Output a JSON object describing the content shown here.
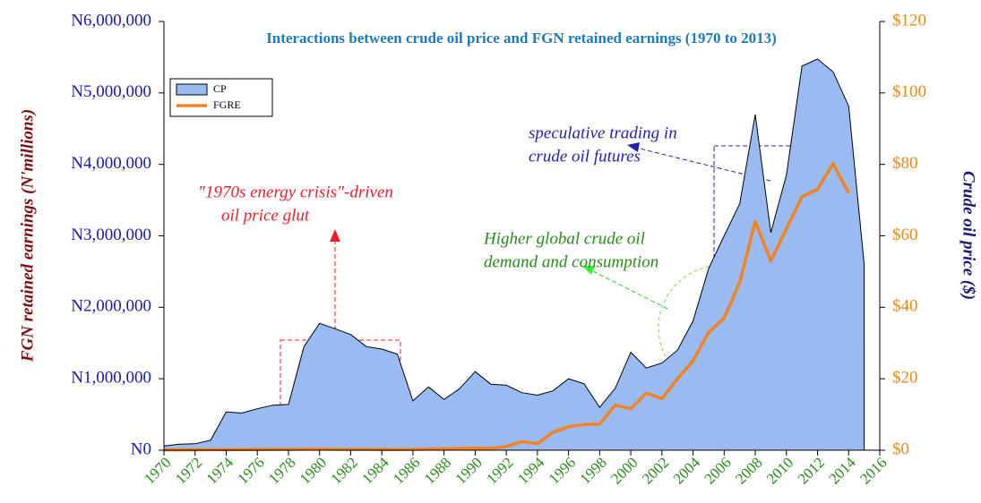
{
  "chart_data": {
    "type": "area",
    "title": "Interactions between crude oil price and FGN retained earnings (1970 to 2013)",
    "ylabel": "FGN retained earnings (N'millions)",
    "y2label": "Crude oil price ($)",
    "x": [
      1970,
      1971,
      1972,
      1973,
      1974,
      1975,
      1976,
      1977,
      1978,
      1979,
      1980,
      1981,
      1982,
      1983,
      1984,
      1985,
      1986,
      1987,
      1988,
      1989,
      1990,
      1991,
      1992,
      1993,
      1994,
      1995,
      1996,
      1997,
      1998,
      1999,
      2000,
      2001,
      2002,
      2003,
      2004,
      2005,
      2006,
      2007,
      2008,
      2009,
      2010,
      2011,
      2012,
      2013,
      2014,
      2015
    ],
    "series": [
      {
        "name": "CP",
        "type": "area",
        "axis": "y2",
        "color": "#99bbf2",
        "values": [
          1.2,
          1.7,
          1.8,
          2.8,
          10.7,
          10.4,
          11.6,
          12.6,
          12.8,
          29,
          35.5,
          34,
          32.4,
          29,
          28.3,
          26.9,
          13.8,
          17.7,
          14.2,
          17.2,
          22,
          18.5,
          18.2,
          16.1,
          15.4,
          16.6,
          20,
          18.6,
          12,
          17.3,
          27.4,
          23,
          24.4,
          28,
          36.2,
          50.8,
          60,
          69,
          94,
          60.9,
          77,
          107.5,
          109.5,
          105.9,
          96.3,
          52
        ]
      },
      {
        "name": "FGRE",
        "type": "line",
        "axis": "y",
        "color": "#f58220",
        "values": [
          5000,
          5000,
          6000,
          7000,
          8000,
          10000,
          11000,
          12000,
          13000,
          14000,
          15000,
          14000,
          13000,
          12000,
          11000,
          10000,
          12000,
          16000,
          20000,
          25000,
          30000,
          25000,
          50000,
          120000,
          90000,
          250000,
          330000,
          360000,
          365000,
          630000,
          580000,
          800000,
          720000,
          1000000,
          1250000,
          1650000,
          1850000,
          2350000,
          3200000,
          2650000,
          3100000,
          3550000,
          3650000,
          4010000,
          3600000,
          null
        ]
      }
    ],
    "xlim": [
      1970,
      2016
    ],
    "xticks": [
      1970,
      1972,
      1974,
      1976,
      1978,
      1980,
      1982,
      1984,
      1986,
      1988,
      1990,
      1992,
      1994,
      1996,
      1998,
      2000,
      2002,
      2004,
      2006,
      2008,
      2010,
      2012,
      2014,
      2016
    ],
    "ylim": [
      0,
      6000000
    ],
    "yticks": [
      {
        "value": 0,
        "label": "N0"
      },
      {
        "value": 1000000,
        "label": "N1,000,000"
      },
      {
        "value": 2000000,
        "label": "N2,000,000"
      },
      {
        "value": 3000000,
        "label": "N3,000,000"
      },
      {
        "value": 4000000,
        "label": "N4,000,000"
      },
      {
        "value": 5000000,
        "label": "N5,000,000"
      },
      {
        "value": 6000000,
        "label": "N6,000,000"
      }
    ],
    "y2lim": [
      0,
      120
    ],
    "y2ticks": [
      {
        "value": 0,
        "label": "$0"
      },
      {
        "value": 20,
        "label": "$20"
      },
      {
        "value": 40,
        "label": "$40"
      },
      {
        "value": 60,
        "label": "$60"
      },
      {
        "value": 80,
        "label": "$80"
      },
      {
        "value": 100,
        "label": "$100"
      },
      {
        "value": 120,
        "label": "$120"
      }
    ],
    "annotations": [
      {
        "lines": [
          "\"1970s energy crisis\"-driven",
          " oil price glut"
        ],
        "color": "#e8202a"
      },
      {
        "lines": [
          "speculative trading in",
          "crude oil futures"
        ],
        "color": "#2222aa"
      },
      {
        "lines": [
          "Higher global crude oil",
          "demand and consumption"
        ],
        "color": "#2a8a1a"
      }
    ]
  }
}
